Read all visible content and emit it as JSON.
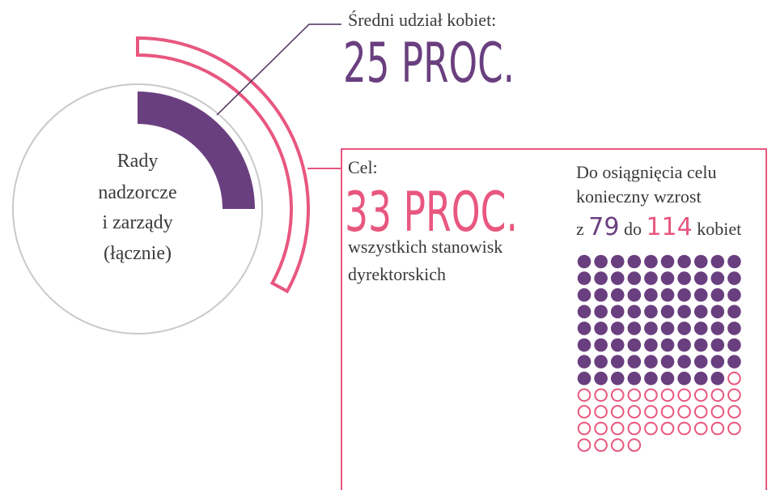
{
  "average": {
    "label": "Średni udział kobiet:",
    "value": 25,
    "value_label": "25 PROC."
  },
  "center_label": [
    "Rady",
    "nadzorcze",
    "i zarządy",
    "(łącznie)"
  ],
  "target": {
    "label": "Cel:",
    "value": 33,
    "value_label": "33 PROC.",
    "description": [
      "wszystkich stanowisk",
      "dyrektorskich"
    ]
  },
  "growth": {
    "text": [
      "Do osiągnięcia celu",
      "konieczny wzrost"
    ],
    "from_prefix": "z",
    "from": 79,
    "to_prefix": "do",
    "to": 114,
    "suffix": "kobiet"
  }
}
